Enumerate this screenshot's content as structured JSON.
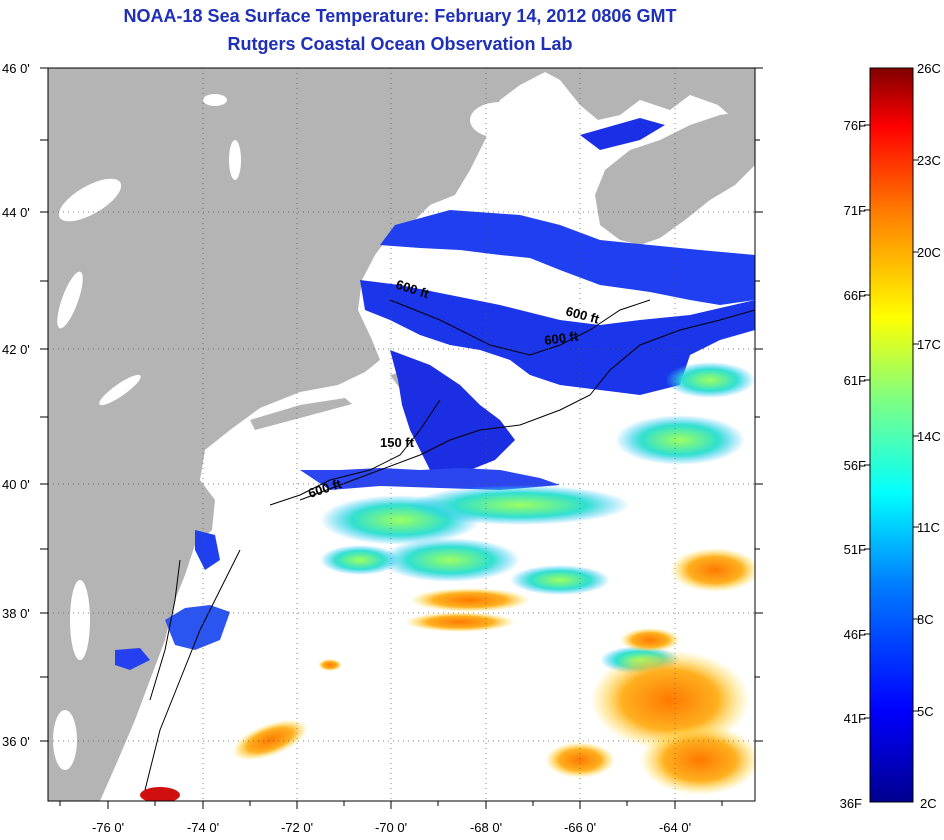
{
  "title": "NOAA-18 Sea Surface Temperature:  February 14, 2012 0806 GMT",
  "subtitle": "Rutgers Coastal Ocean Observation Lab",
  "lat_ticks": [
    "46 0'",
    "44 0'",
    "42 0'",
    "40 0'",
    "38 0'",
    "36 0'"
  ],
  "lon_ticks": [
    "-76 0'",
    "-74 0'",
    "-72 0'",
    "-70 0'",
    "-68 0'",
    "-66 0'",
    "-64 0'"
  ],
  "depth_labels": [
    "600 ft",
    "600 ft",
    "600 ft",
    "150 ft",
    "600 ft"
  ],
  "colorbar": {
    "celsius": [
      "26C",
      "23C",
      "20C",
      "17C",
      "14C",
      "11C",
      "8C",
      "5C",
      "2C"
    ],
    "fahrenheit": [
      "76F",
      "71F",
      "66F",
      "61F",
      "56F",
      "51F",
      "46F",
      "41F",
      "36F"
    ],
    "colors": [
      "#00008f",
      "#0000ff",
      "#0080ff",
      "#00ffff",
      "#80ff80",
      "#ffff00",
      "#ff8000",
      "#ff0000",
      "#800000"
    ]
  },
  "colors": {
    "land": "#b4b4b4",
    "title": "#1f2fb8",
    "cold": "#1a2fe6"
  }
}
